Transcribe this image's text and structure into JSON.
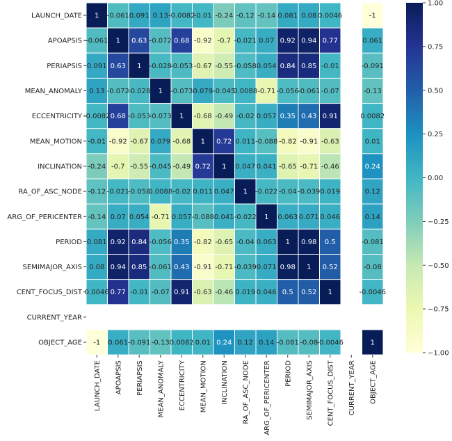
{
  "chart_data": {
    "type": "heatmap",
    "title": "",
    "xlabel": "",
    "ylabel": "",
    "rows": [
      "LAUNCH_DATE",
      "APOAPSIS",
      "PERIAPSIS",
      "MEAN_ANOMALY",
      "ECCENTRICITY",
      "MEAN_MOTION",
      "INCLINATION",
      "RA_OF_ASC_NODE",
      "ARG_OF_PERICENTER",
      "PERIOD",
      "SEMIMAJOR_AXIS",
      "CENT_FOCUS_DIST",
      "CURRENT_YEAR",
      "OBJECT_AGE"
    ],
    "columns": [
      "LAUNCH_DATE",
      "APOAPSIS",
      "PERIAPSIS",
      "MEAN_ANOMALY",
      "ECCENTRICITY",
      "MEAN_MOTION",
      "INCLINATION",
      "RA_OF_ASC_NODE",
      "ARG_OF_PERICENTER",
      "PERIOD",
      "SEMIMAJOR_AXIS",
      "CENT_FOCUS_DIST",
      "CURRENT_YEAR",
      "OBJECT_AGE"
    ],
    "values": [
      [
        1,
        -0.061,
        0.091,
        0.13,
        -0.0082,
        -0.01,
        -0.24,
        -0.12,
        -0.14,
        0.081,
        0.08,
        0.0046,
        null,
        -1
      ],
      [
        -0.061,
        1,
        0.63,
        -0.072,
        0.68,
        -0.92,
        -0.7,
        -0.021,
        0.07,
        0.92,
        0.94,
        0.77,
        null,
        0.061
      ],
      [
        0.091,
        0.63,
        1,
        -0.028,
        -0.053,
        -0.67,
        -0.55,
        -0.058,
        0.054,
        0.84,
        0.85,
        -0.01,
        null,
        -0.091
      ],
      [
        0.13,
        -0.072,
        -0.028,
        1,
        -0.073,
        0.079,
        -0.045,
        0.0088,
        -0.71,
        -0.056,
        -0.061,
        -0.07,
        null,
        -0.13
      ],
      [
        -0.0082,
        0.68,
        -0.053,
        -0.073,
        1,
        -0.68,
        -0.49,
        -0.02,
        0.057,
        0.35,
        0.43,
        0.91,
        null,
        0.0082
      ],
      [
        -0.01,
        -0.92,
        -0.67,
        0.079,
        -0.68,
        1,
        0.72,
        0.011,
        -0.088,
        -0.82,
        -0.91,
        -0.63,
        null,
        0.01
      ],
      [
        -0.24,
        -0.7,
        -0.55,
        -0.045,
        -0.49,
        0.72,
        1,
        0.047,
        0.041,
        -0.65,
        -0.71,
        -0.46,
        null,
        0.24
      ],
      [
        -0.12,
        -0.021,
        -0.058,
        0.0088,
        -0.02,
        0.011,
        0.047,
        1,
        -0.022,
        -0.04,
        -0.039,
        0.019,
        null,
        0.12
      ],
      [
        -0.14,
        0.07,
        0.054,
        -0.71,
        0.057,
        -0.088,
        0.041,
        -0.022,
        1,
        0.063,
        0.071,
        0.046,
        null,
        0.14
      ],
      [
        0.081,
        0.92,
        0.84,
        -0.056,
        0.35,
        -0.82,
        -0.65,
        -0.04,
        0.063,
        1,
        0.98,
        0.5,
        null,
        -0.081
      ],
      [
        0.08,
        0.94,
        0.85,
        -0.061,
        0.43,
        -0.91,
        -0.71,
        -0.039,
        0.071,
        0.98,
        1,
        0.52,
        null,
        -0.08
      ],
      [
        0.0046,
        0.77,
        -0.01,
        -0.07,
        0.91,
        -0.63,
        -0.46,
        0.019,
        0.046,
        0.5,
        0.52,
        1,
        null,
        -0.0046
      ],
      [
        null,
        null,
        null,
        null,
        null,
        null,
        null,
        null,
        null,
        null,
        null,
        null,
        null,
        null
      ],
      [
        -1,
        0.061,
        -0.091,
        -0.13,
        0.0082,
        0.01,
        0.24,
        0.12,
        0.14,
        -0.081,
        -0.08,
        -0.0046,
        null,
        1
      ]
    ],
    "annotations": [
      [
        "1",
        "-0.061",
        "0.091",
        "0.13",
        "-0.0082",
        "-0.01",
        "-0.24",
        "-0.12",
        "-0.14",
        "0.081",
        "0.08",
        "0.0046",
        "",
        "-1"
      ],
      [
        "-0.061",
        "1",
        "0.63",
        "-0.072",
        "0.68",
        "-0.92",
        "-0.7",
        "-0.021",
        "0.07",
        "0.92",
        "0.94",
        "0.77",
        "",
        "0.061"
      ],
      [
        "0.091",
        "0.63",
        "1",
        "-0.028",
        "-0.053",
        "-0.67",
        "-0.55",
        "-0.058",
        "0.054",
        "0.84",
        "0.85",
        "-0.01",
        "",
        "-0.091"
      ],
      [
        "0.13",
        "-0.072",
        "-0.028",
        "1",
        "-0.073",
        "0.079",
        "-0.045",
        "0.0088",
        "-0.71",
        "-0.056",
        "-0.061",
        "-0.07",
        "",
        "-0.13"
      ],
      [
        "-0.0082",
        "0.68",
        "-0.053",
        "-0.073",
        "1",
        "-0.68",
        "-0.49",
        "-0.02",
        "0.057",
        "0.35",
        "0.43",
        "0.91",
        "",
        "0.0082"
      ],
      [
        "-0.01",
        "-0.92",
        "-0.67",
        "0.079",
        "-0.68",
        "1",
        "0.72",
        "0.011",
        "-0.088",
        "-0.82",
        "-0.91",
        "-0.63",
        "",
        "0.01"
      ],
      [
        "-0.24",
        "-0.7",
        "-0.55",
        "-0.045",
        "-0.49",
        "0.72",
        "1",
        "0.047",
        "0.041",
        "-0.65",
        "-0.71",
        "-0.46",
        "",
        "0.24"
      ],
      [
        "-0.12",
        "-0.021",
        "-0.058",
        "0.0088",
        "-0.02",
        "0.011",
        "0.047",
        "1",
        "-0.022",
        "-0.04",
        "-0.039",
        "0.019",
        "",
        "0.12"
      ],
      [
        "-0.14",
        "0.07",
        "0.054",
        "-0.71",
        "0.057",
        "-0.088",
        "0.041",
        "-0.022",
        "1",
        "0.063",
        "0.071",
        "0.046",
        "",
        "0.14"
      ],
      [
        "0.081",
        "0.92",
        "0.84",
        "-0.056",
        "0.35",
        "-0.82",
        "-0.65",
        "-0.04",
        "0.063",
        "1",
        "0.98",
        "0.5",
        "",
        "-0.081"
      ],
      [
        "0.08",
        "0.94",
        "0.85",
        "-0.061",
        "0.43",
        "-0.91",
        "-0.71",
        "-0.039",
        "0.071",
        "0.98",
        "1",
        "0.52",
        "",
        "-0.08"
      ],
      [
        "0.0046",
        "0.77",
        "-0.01",
        "-0.07",
        "0.91",
        "-0.63",
        "-0.46",
        "0.019",
        "0.046",
        "0.5",
        "0.52",
        "1",
        "",
        "-0.0046"
      ],
      [
        "",
        "",
        "",
        "",
        "",
        "",
        "",
        "",
        "",
        "",
        "",
        "",
        "",
        ""
      ],
      [
        "-1",
        "0.061",
        "-0.091",
        "-0.13",
        "0.0082",
        "0.01",
        "0.24",
        "0.12",
        "0.14",
        "-0.081",
        "-0.08",
        "-0.0046",
        "",
        "1"
      ]
    ],
    "colorbar": {
      "min": -1,
      "max": 1,
      "ticks": [
        1.0,
        0.75,
        0.5,
        0.25,
        0.0,
        -0.25,
        -0.5,
        -0.75,
        -1.0
      ],
      "tick_labels": [
        "1.00",
        "0.75",
        "0.50",
        "0.25",
        "0.00",
        "−0.25",
        "−0.50",
        "−0.75",
        "−1.00"
      ],
      "colormap": "YlGnBu",
      "colormap_stops": [
        "#ffffd9",
        "#edf8b1",
        "#c7e9b4",
        "#7fcdbb",
        "#41b6c4",
        "#1d91c0",
        "#225ea8",
        "#253494",
        "#081d58"
      ]
    },
    "grid": true,
    "missing_color": "#ffffff",
    "line_color": "#ffffff"
  }
}
